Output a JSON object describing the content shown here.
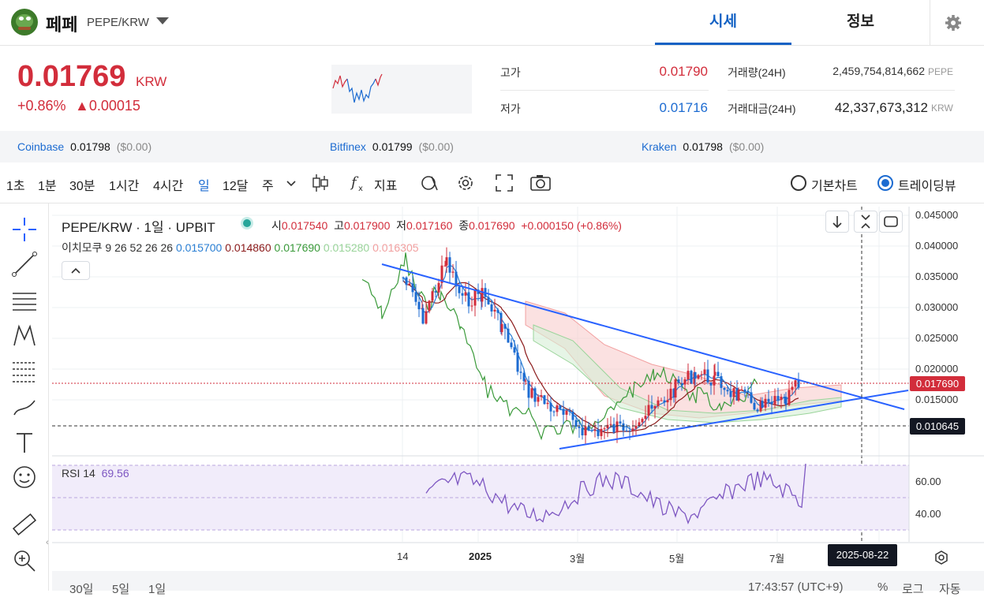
{
  "header": {
    "coin_name": "페페",
    "pair": "PEPE/KRW",
    "tabs": [
      {
        "label": "시세",
        "active": true
      },
      {
        "label": "정보",
        "active": false
      }
    ]
  },
  "price": {
    "current": "0.01769",
    "unit": "KRW",
    "change_pct": "+0.86%",
    "change_abs": "▲0.00015",
    "high_label": "고가",
    "high_value": "0.01790",
    "low_label": "저가",
    "low_value": "0.01716",
    "volume_label": "거래량(24H)",
    "volume_value": "2,459,754,814,662",
    "volume_unit": "PEPE",
    "turnover_label": "거래대금(24H)",
    "turnover_value": "42,337,673,312",
    "turnover_unit": "KRW"
  },
  "exchanges": [
    {
      "name": "Coinbase",
      "price": "0.01798",
      "usd": "($0.00)"
    },
    {
      "name": "Bitfinex",
      "price": "0.01799",
      "usd": "($0.00)"
    },
    {
      "name": "Kraken",
      "price": "0.01798",
      "usd": "($0.00)"
    }
  ],
  "toolbar": {
    "intervals": [
      "1초",
      "1분",
      "30분",
      "1시간",
      "4시간",
      "일",
      "12달",
      "주"
    ],
    "selected_interval": "일",
    "indicator_label": "지표",
    "chart_types": [
      {
        "label": "기본차트",
        "selected": false
      },
      {
        "label": "트레이딩뷰",
        "selected": true
      }
    ]
  },
  "chart": {
    "symbol_line": "PEPE/KRW · 1일 · UPBIT",
    "ohlc": [
      {
        "k": "시",
        "v": "0.017540"
      },
      {
        "k": "고",
        "v": "0.017900"
      },
      {
        "k": "저",
        "v": "0.017160"
      },
      {
        "k": "종",
        "v": "0.017690"
      }
    ],
    "change": "+0.000150 (+0.86%)",
    "ichimoku_label": "이치모쿠 9 26 52 26 26",
    "ichimoku_values": [
      {
        "v": "0.015700",
        "color": "#2a7fd4"
      },
      {
        "v": "0.014860",
        "color": "#8b1a1a"
      },
      {
        "v": "0.017690",
        "color": "#3a9a3a"
      },
      {
        "v": "0.015280",
        "color": "#9ad49a"
      },
      {
        "v": "0.016305",
        "color": "#f2a0a0"
      }
    ],
    "rsi_label": "RSI 14",
    "rsi_value": "69.56",
    "price_axis": [
      "0.045000",
      "0.040000",
      "0.035000",
      "0.030000",
      "0.025000",
      "0.020000",
      "0.015000"
    ],
    "last_price_tag": "0.017690",
    "crosshair_price_tag": "0.010645",
    "rsi_axis": [
      "60.00",
      "40.00"
    ],
    "time_axis": [
      "14",
      "2025",
      "3월",
      "5월",
      "7월"
    ],
    "crosshair_time_tag": "2025-08-22",
    "bottom_ranges": [
      "30일",
      "5일",
      "1일"
    ],
    "clock": "17:43:57 (UTC+9)",
    "bottom_right": [
      "%",
      "로그",
      "자동"
    ],
    "colors": {
      "up": "#d22d3b",
      "down": "#1c6bd1",
      "trend": "#2962ff",
      "rsi": "#7e57c2"
    }
  }
}
